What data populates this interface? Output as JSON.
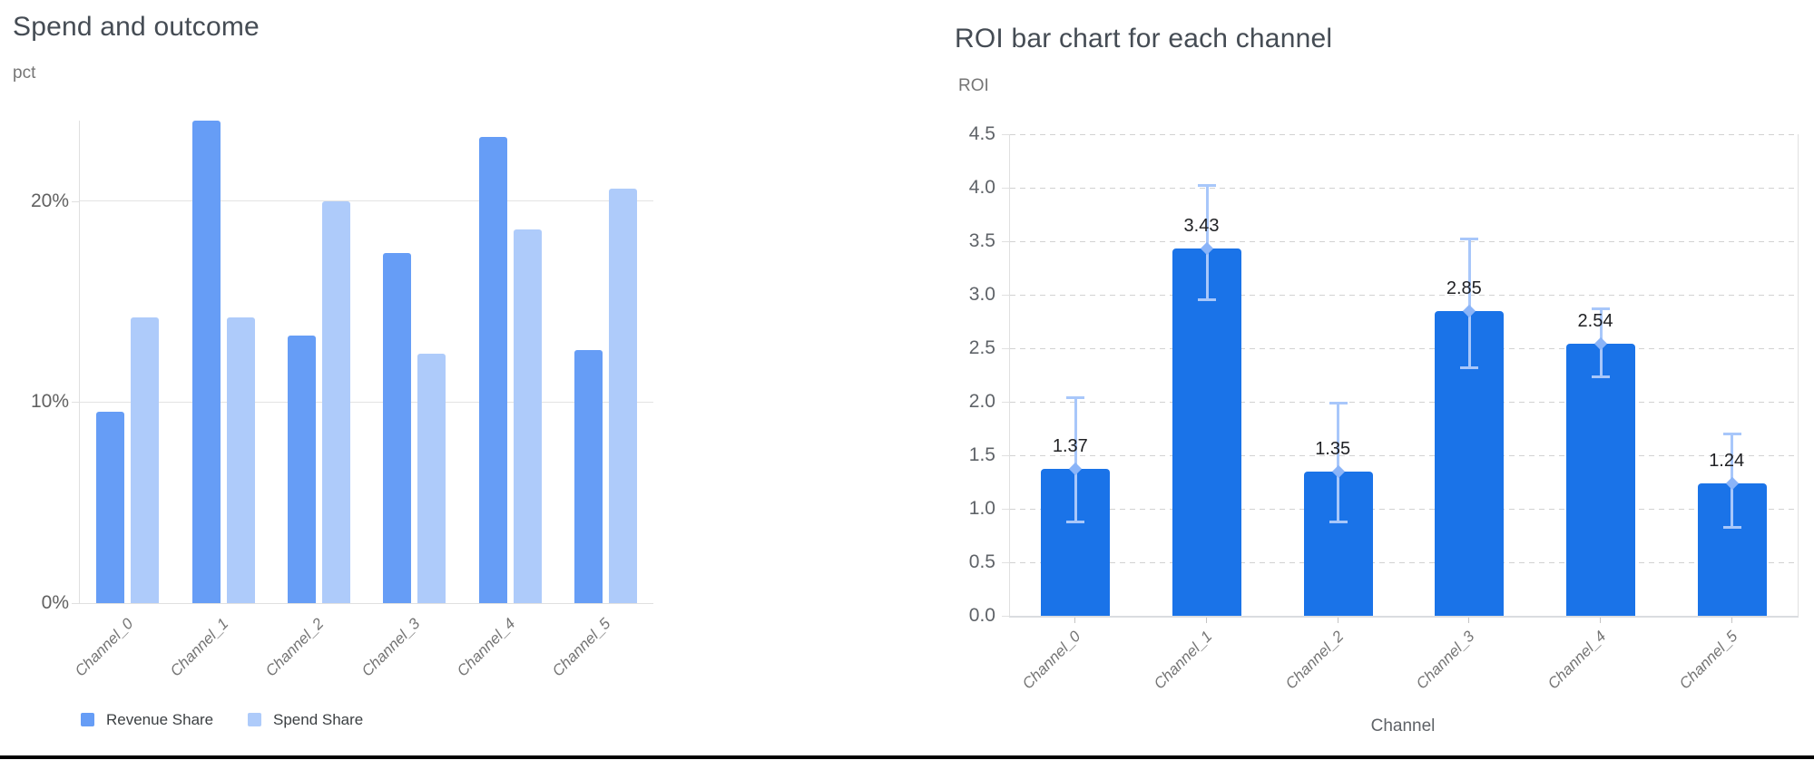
{
  "page": {
    "background": "#FFFFFF",
    "bottom_rule_color": "#000000"
  },
  "chart_data": [
    {
      "type": "bar",
      "variant": "grouped-vertical",
      "title": "Spend and outcome",
      "y_unit": "pct",
      "categories": [
        "Channel_0",
        "Channel_1",
        "Channel_2",
        "Channel_3",
        "Channel_4",
        "Channel_5"
      ],
      "series": [
        {
          "name": "Revenue Share",
          "color": "#669DF6",
          "values": [
            9.5,
            24.0,
            13.3,
            17.4,
            23.2,
            12.6
          ]
        },
        {
          "name": "Spend Share",
          "color": "#AECBFA",
          "values": [
            14.2,
            14.2,
            20.0,
            12.4,
            18.6,
            20.6
          ]
        }
      ],
      "ylim": [
        0,
        24
      ],
      "y_ticks": [
        {
          "value": 0,
          "label": "0%"
        },
        {
          "value": 10,
          "label": "10%"
        },
        {
          "value": 20,
          "label": "20%"
        }
      ],
      "grid": "solid",
      "legend_position": "bottom-left"
    },
    {
      "type": "bar",
      "variant": "vertical-with-error-bars",
      "title": "ROI bar chart for each channel",
      "y_unit": "ROI",
      "xlabel": "Channel",
      "categories": [
        "Channel_0",
        "Channel_1",
        "Channel_2",
        "Channel_3",
        "Channel_4",
        "Channel_5"
      ],
      "values": [
        1.37,
        3.43,
        1.35,
        2.85,
        2.54,
        1.24
      ],
      "value_labels": [
        "1.37",
        "3.43",
        "1.35",
        "2.85",
        "2.54",
        "1.24"
      ],
      "error_low": [
        0.88,
        2.95,
        0.88,
        2.32,
        2.23,
        0.83
      ],
      "error_high": [
        2.04,
        4.02,
        1.99,
        3.52,
        2.87,
        1.7
      ],
      "ylim": [
        0,
        4.5
      ],
      "y_tick_step": 0.5,
      "y_tick_labels": [
        "0.0",
        "0.5",
        "1.0",
        "1.5",
        "2.0",
        "2.5",
        "3.0",
        "3.5",
        "4.0",
        "4.5"
      ],
      "grid": "dashed",
      "bar_color": "#1A73E8",
      "error_bar_color": "#A8C7FA",
      "error_marker_color": "#8AB4F8"
    }
  ],
  "palette": {
    "title_text": "#454C54",
    "axis_unit_text": "#757575",
    "tick_text_left": "#616161",
    "tick_text_right": "#5F6368",
    "category_text": "#757575",
    "value_label_text": "#202124",
    "legend_text": "#3C4043",
    "gridline_solid": "#E3E3E3",
    "gridline_dashed": "#D2D2D2",
    "axis_line": "#E0E0E0"
  }
}
